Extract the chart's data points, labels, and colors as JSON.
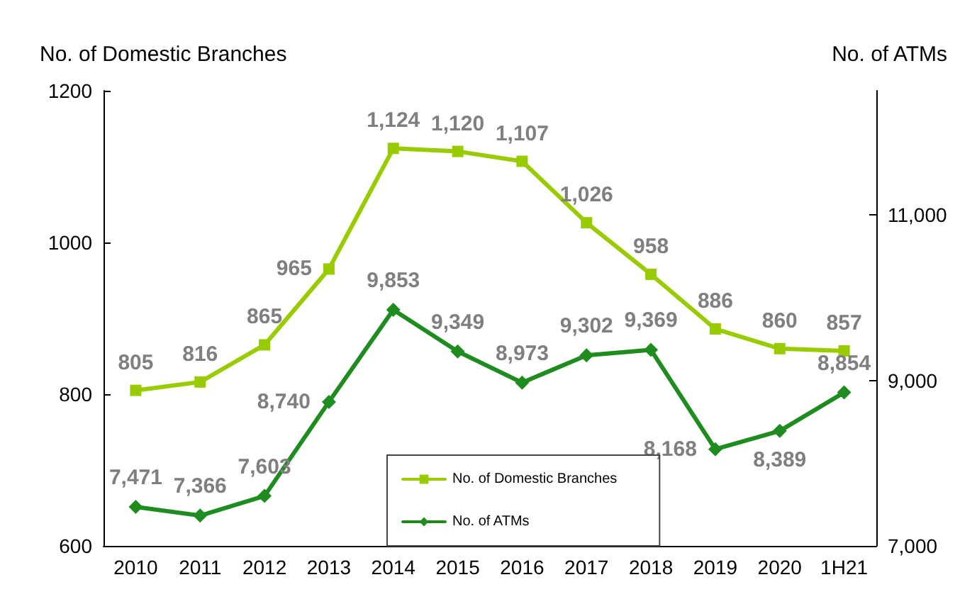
{
  "chart_data": {
    "type": "line",
    "ylabel": "No. of Domestic Branches",
    "y2label": "No. of ATMs",
    "categories": [
      "2010",
      "2011",
      "2012",
      "2013",
      "2014",
      "2015",
      "2016",
      "2017",
      "2018",
      "2019",
      "2020",
      "1H21"
    ],
    "series": [
      {
        "name": "No. of Domestic Branches",
        "color": "#99cc00",
        "marker": "square",
        "values": [
          805,
          816,
          865,
          965,
          1124,
          1120,
          1107,
          1026,
          958,
          886,
          860,
          857
        ],
        "value_labels": [
          "805",
          "816",
          "865",
          "965",
          "1,124",
          "1,120",
          "1,107",
          "1,026",
          "958",
          "886",
          "860",
          "857"
        ]
      },
      {
        "name": "No. of ATMs",
        "color": "#1e8c1e",
        "marker": "diamond",
        "axis": "y2",
        "values": [
          7471,
          7366,
          7603,
          8740,
          9853,
          9349,
          8973,
          9302,
          9369,
          8168,
          8389,
          8854
        ],
        "value_labels": [
          "7,471",
          "7,366",
          "7,603",
          "8,740",
          "9,853",
          "9,349",
          "8,973",
          "9,302",
          "9,369",
          "8,168",
          "8,389",
          "8,854"
        ]
      }
    ],
    "ylim": [
      600,
      1200
    ],
    "yticks": [
      600,
      800,
      1000,
      1200
    ],
    "y2lim": [
      7000,
      12500
    ],
    "y2ticks": [
      {
        "value": 7000,
        "label": "7,000"
      },
      {
        "value": 9000,
        "label": "9,000"
      },
      {
        "value": 11000,
        "label": "11,000"
      }
    ],
    "legend": "bottom",
    "grid": false,
    "line_style": "solid"
  }
}
